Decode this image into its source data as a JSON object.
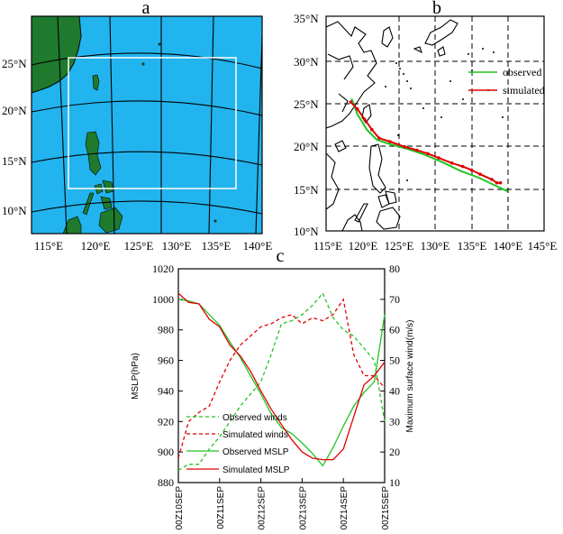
{
  "panels": {
    "a": "a",
    "b": "b",
    "c": "c"
  },
  "colors": {
    "ocean": "#22b4ee",
    "land": "#1f7a2e",
    "observed": "#22c422",
    "simulated": "#e00000",
    "domain_box": "#ffffff"
  },
  "map_a": {
    "lat_labels": [
      "25°N",
      "20°N",
      "15°N",
      "10°N"
    ],
    "lon_labels": [
      "115°E",
      "120°E",
      "125°E",
      "130°E",
      "135°E",
      "140°E"
    ]
  },
  "map_b": {
    "lat_labels": [
      "35°N",
      "30°N",
      "25°N",
      "20°N",
      "15°N",
      "10°N"
    ],
    "lon_labels": [
      "115°E",
      "120°E",
      "125°E",
      "130°E",
      "135°E",
      "140°E",
      "145°E"
    ],
    "legend": {
      "observed": "observed",
      "simulated": "simulated"
    },
    "track_observed": [
      [
        140.0,
        14.6
      ],
      [
        138.5,
        15.2
      ],
      [
        136.0,
        16.2
      ],
      [
        133.5,
        17.0
      ],
      [
        131.0,
        18.0
      ],
      [
        128.5,
        18.9
      ],
      [
        126.0,
        19.6
      ],
      [
        123.8,
        20.1
      ],
      [
        122.0,
        20.6
      ],
      [
        120.6,
        21.8
      ],
      [
        119.3,
        23.6
      ],
      [
        118.5,
        25.4
      ]
    ],
    "track_simulated": [
      [
        139.0,
        15.6
      ],
      [
        138.5,
        15.6
      ],
      [
        137.8,
        16.0
      ],
      [
        136.2,
        16.6
      ],
      [
        135.0,
        17.1
      ],
      [
        133.8,
        17.5
      ],
      [
        132.3,
        17.9
      ],
      [
        130.5,
        18.5
      ],
      [
        129.0,
        19.0
      ],
      [
        127.5,
        19.4
      ],
      [
        125.8,
        19.8
      ],
      [
        123.8,
        20.4
      ],
      [
        122.3,
        20.8
      ],
      [
        121.3,
        21.8
      ],
      [
        120.3,
        23.0
      ],
      [
        119.3,
        24.2
      ],
      [
        118.4,
        25.0
      ]
    ]
  },
  "chart_data": {
    "type": "line",
    "title": "",
    "x_tick_labels": [
      "00Z10SEP",
      "00Z11SEP",
      "00Z12SEP",
      "00Z13SEP",
      "00Z14SEP",
      "00Z15SEP"
    ],
    "x_range_hours": [
      0,
      120
    ],
    "y_left_label": "MSLP(hPa)",
    "y_left_range": [
      880,
      1020
    ],
    "y_left_ticks": [
      880,
      900,
      920,
      940,
      960,
      980,
      1000,
      1020
    ],
    "y_right_label": "Maximum surface wind(m/s)",
    "y_right_range": [
      10,
      80
    ],
    "y_right_ticks": [
      10,
      20,
      30,
      40,
      50,
      60,
      70,
      80
    ],
    "series": [
      {
        "name": "Observed winds",
        "axis": "right",
        "style": "dashed",
        "color": "#22c422",
        "x": [
          0,
          6,
          12,
          18,
          24,
          30,
          36,
          42,
          48,
          54,
          60,
          66,
          72,
          78,
          84,
          90,
          96,
          102,
          108,
          114,
          120
        ],
        "y": [
          14,
          16,
          16,
          21,
          25,
          30,
          35,
          39,
          43,
          52,
          62,
          63,
          65,
          68,
          72,
          64,
          60,
          58,
          54,
          50,
          30
        ]
      },
      {
        "name": "Simulated winds",
        "axis": "right",
        "style": "dashed",
        "color": "#e00000",
        "x": [
          0,
          6,
          12,
          18,
          24,
          30,
          36,
          42,
          48,
          54,
          60,
          66,
          72,
          78,
          84,
          90,
          96,
          102,
          108,
          114,
          120
        ],
        "y": [
          18,
          30,
          33,
          35,
          43,
          50,
          55,
          58,
          61,
          62,
          64,
          65,
          62,
          64,
          63,
          65,
          70,
          52,
          45,
          45,
          41
        ]
      },
      {
        "name": "Observed MSLP",
        "axis": "left",
        "style": "solid",
        "color": "#22c422",
        "x": [
          0,
          6,
          12,
          18,
          24,
          30,
          36,
          42,
          48,
          54,
          60,
          66,
          72,
          78,
          84,
          90,
          96,
          102,
          108,
          114,
          120
        ],
        "y": [
          1000,
          999,
          997,
          990,
          983,
          972,
          962,
          950,
          938,
          925,
          916,
          912,
          906,
          899,
          891,
          903,
          917,
          930,
          939,
          946,
          990
        ]
      },
      {
        "name": "Simulated MSLP",
        "axis": "left",
        "style": "solid",
        "color": "#e00000",
        "x": [
          0,
          6,
          12,
          18,
          24,
          30,
          36,
          42,
          48,
          54,
          60,
          66,
          72,
          78,
          84,
          90,
          96,
          102,
          108,
          114,
          120
        ],
        "y": [
          1004,
          998,
          997,
          987,
          982,
          970,
          963,
          953,
          940,
          928,
          918,
          908,
          900,
          896,
          895,
          895,
          902,
          923,
          944,
          950,
          959
        ]
      }
    ],
    "legend": {
      "observed_winds": "Observed winds",
      "simulated_winds": "Simulated winds",
      "observed_mslp": "Observed MSLP",
      "simulated_mslp": "Simulated MSLP"
    },
    "legend_placement": "bottom-left"
  }
}
